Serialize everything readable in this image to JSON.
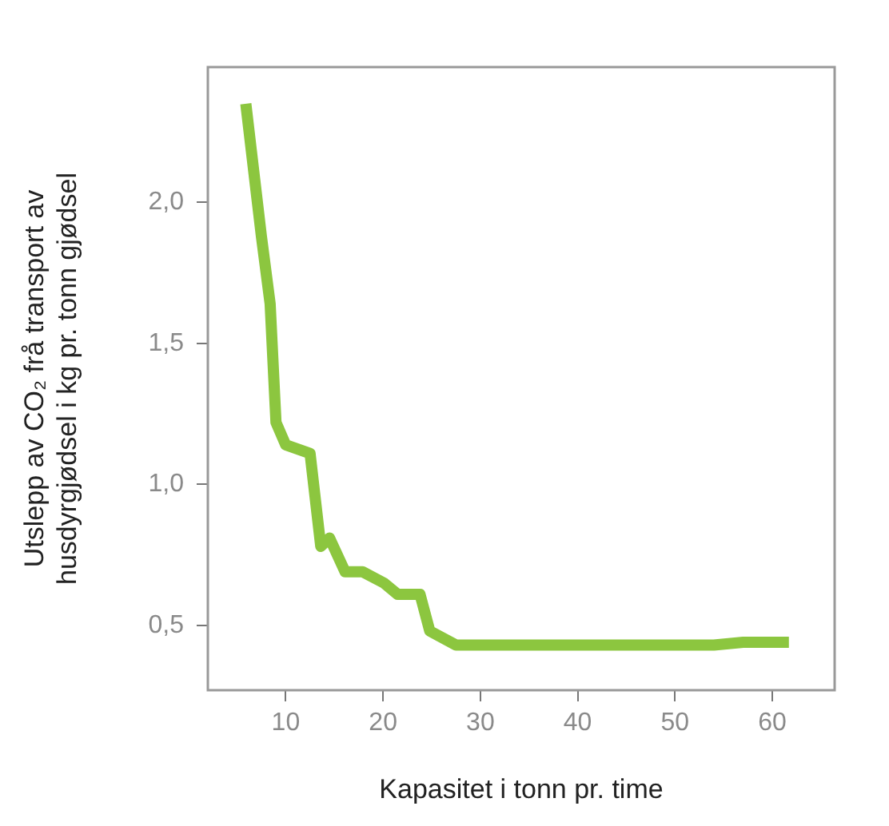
{
  "chart_data": {
    "type": "line",
    "xlabel": "Kapasitet i tonn pr. time",
    "ylabel": "Utslepp av CO₂ frå transport av\nhusdyrgjødsel i kg pr. tonn gjødsel",
    "x": [
      5.9,
      7.5,
      8.4,
      9.0,
      10.0,
      12.5,
      13.6,
      14.5,
      16.1,
      17.9,
      20.1,
      21.5,
      23.8,
      24.8,
      27.5,
      54.0,
      57.0,
      61.7
    ],
    "series": [
      {
        "color": "#8cc63f",
        "values": [
          2.35,
          1.88,
          1.64,
          1.22,
          1.14,
          1.11,
          0.78,
          0.81,
          0.69,
          0.69,
          0.65,
          0.61,
          0.61,
          0.48,
          0.43,
          0.43,
          0.44,
          0.44
        ]
      }
    ],
    "xlim": [
      2,
      66.4
    ],
    "xticks": [
      10,
      20,
      30,
      40,
      50,
      60
    ],
    "ylim": [
      0.27,
      2.48
    ],
    "yticks": [
      {
        "value": 0.5,
        "label": "0,5"
      },
      {
        "value": 1.0,
        "label": "1,0"
      },
      {
        "value": 1.5,
        "label": "1,5"
      },
      {
        "value": 2.0,
        "label": "2,0"
      }
    ],
    "grid": false,
    "legend": false,
    "marker": "none",
    "line_style": "solid"
  }
}
